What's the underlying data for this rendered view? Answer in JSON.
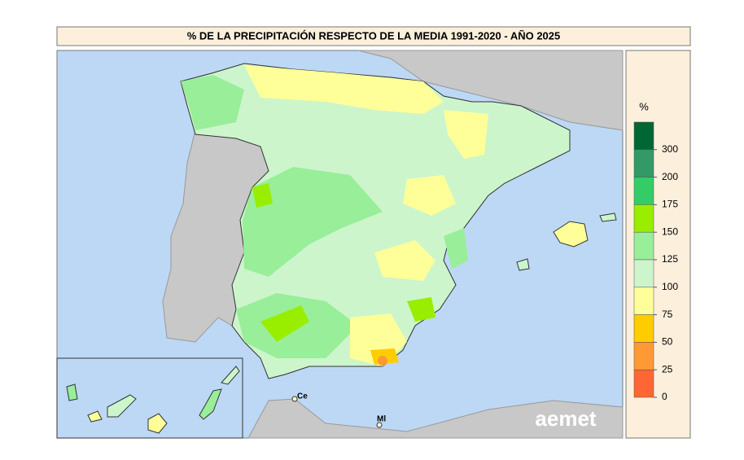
{
  "title": "% DE LA PRECIPITACIÓN RESPECTO DE LA MEDIA 1991-2020 - AÑO 2025",
  "legend": {
    "unit": "%",
    "colors": [
      "#006633",
      "#339966",
      "#33cc66",
      "#99ee00",
      "#99ee99",
      "#ccf5cc",
      "#ffff99",
      "#ffcc00",
      "#ff9933",
      "#ff6633"
    ],
    "ticks": [
      300,
      200,
      175,
      150,
      125,
      100,
      75,
      50,
      25,
      0
    ]
  },
  "places": [
    "Ce",
    "Ml"
  ],
  "logo": "aemet"
}
